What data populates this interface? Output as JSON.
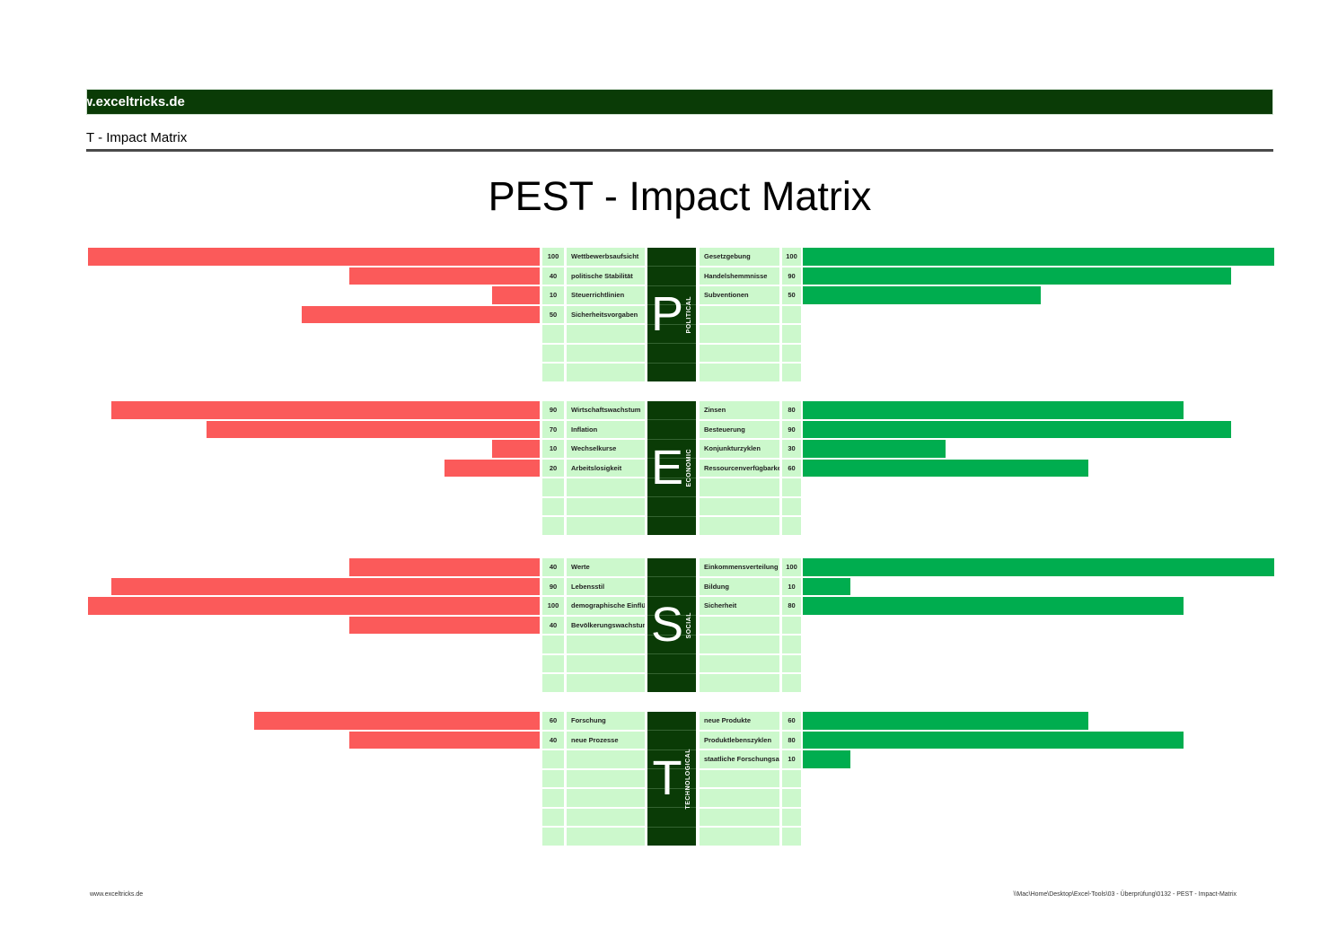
{
  "page": {
    "header_bar_text": "www.exceltricks.de",
    "subtitle": "PEST - Impact Matrix",
    "footer_left": "www.exceltricks.de",
    "footer_right": "\\\\Mac\\Home\\Desktop\\Excel-Tools\\03 - Überprüfung\\0132 - PEST - Impact-Matrix"
  },
  "colors": {
    "dark_green": "#0A3B06",
    "cell_green": "#CCF8CC",
    "bar_red": "#FB5A5A",
    "bar_green": "#00AD4F",
    "rule_gray": "#4a4a4a"
  },
  "chart_data": {
    "type": "bar",
    "title": "PEST - Impact Matrix",
    "value_range": [
      0,
      100
    ],
    "rows_per_section": 7,
    "legend_note": "left red bars = negative impact values, right green bars = positive impact values",
    "sections": [
      {
        "letter": "P",
        "category": "POLITICAL",
        "left": [
          {
            "value": 100,
            "label": "Wettbewerbsaufsicht"
          },
          {
            "value": 40,
            "label": "politische Stabilität"
          },
          {
            "value": 10,
            "label": "Steuerrichtlinien"
          },
          {
            "value": 50,
            "label": "Sicherheitsvorgaben"
          }
        ],
        "right": [
          {
            "label": "Gesetzgebung",
            "value": 100
          },
          {
            "label": "Handelshemmnisse",
            "value": 90
          },
          {
            "label": "Subventionen",
            "value": 50
          }
        ]
      },
      {
        "letter": "E",
        "category": "ECONOMIC",
        "left": [
          {
            "value": 90,
            "label": "Wirtschaftswachstum"
          },
          {
            "value": 70,
            "label": "Inflation"
          },
          {
            "value": 10,
            "label": "Wechselkurse"
          },
          {
            "value": 20,
            "label": "Arbeitslosigkeit"
          }
        ],
        "right": [
          {
            "label": "Zinsen",
            "value": 80
          },
          {
            "label": "Besteuerung",
            "value": 90
          },
          {
            "label": "Konjunkturzyklen",
            "value": 30
          },
          {
            "label": "Ressourcenverfügbarkeit",
            "value": 60
          }
        ]
      },
      {
        "letter": "S",
        "category": "SOCIAL",
        "left": [
          {
            "value": 40,
            "label": "Werte"
          },
          {
            "value": 90,
            "label": "Lebensstil"
          },
          {
            "value": 100,
            "label": "demographische Einflüsse"
          },
          {
            "value": 40,
            "label": "Bevölkerungswachstum"
          }
        ],
        "right": [
          {
            "label": "Einkommensverteilung",
            "value": 100
          },
          {
            "label": "Bildung",
            "value": 10
          },
          {
            "label": "Sicherheit",
            "value": 80
          }
        ]
      },
      {
        "letter": "T",
        "category": "TECHNOLOGICAL",
        "left": [
          {
            "value": 60,
            "label": "Forschung"
          },
          {
            "value": 40,
            "label": "neue Prozesse"
          }
        ],
        "right": [
          {
            "label": "neue Produkte",
            "value": 60
          },
          {
            "label": "Produktlebenszyklen",
            "value": 80
          },
          {
            "label": "staatliche Forschungsausgaben",
            "value": 10
          }
        ]
      }
    ]
  }
}
